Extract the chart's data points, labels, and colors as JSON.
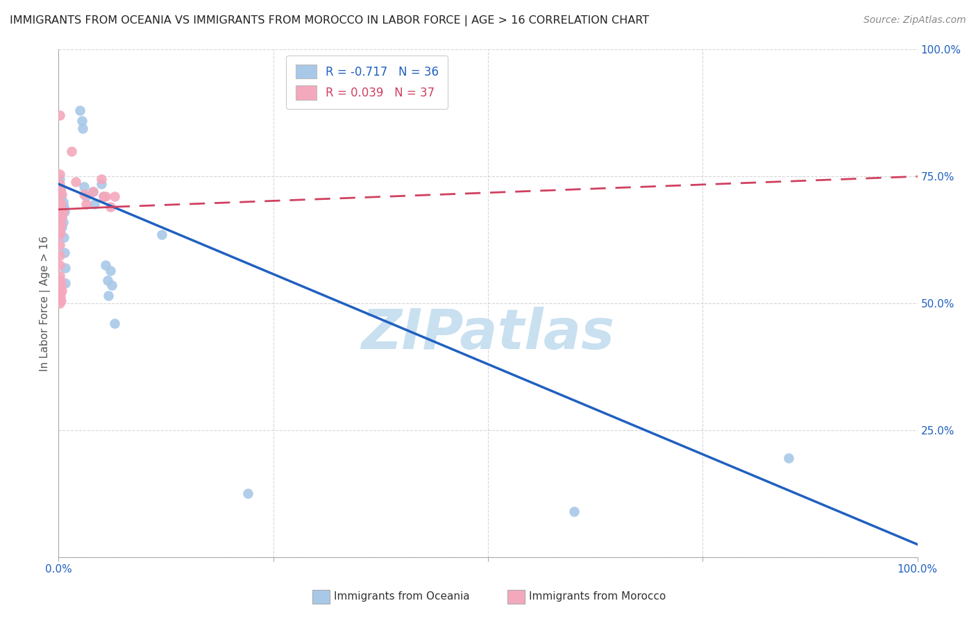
{
  "title": "IMMIGRANTS FROM OCEANIA VS IMMIGRANTS FROM MOROCCO IN LABOR FORCE | AGE > 16 CORRELATION CHART",
  "source": "Source: ZipAtlas.com",
  "ylabel": "In Labor Force | Age > 16",
  "r_oceania": -0.717,
  "n_oceania": 36,
  "r_morocco": 0.039,
  "n_morocco": 37,
  "color_oceania": "#a8c8e8",
  "color_morocco": "#f4a8bc",
  "line_color_oceania": "#2060c0",
  "line_color_morocco": "#d04060",
  "watermark_color": "#c8e0f0",
  "oceania_scatter": [
    [
      0.001,
      0.715
    ],
    [
      0.002,
      0.7
    ],
    [
      0.002,
      0.68
    ],
    [
      0.003,
      0.71
    ],
    [
      0.003,
      0.67
    ],
    [
      0.004,
      0.69
    ],
    [
      0.004,
      0.65
    ],
    [
      0.005,
      0.7
    ],
    [
      0.005,
      0.66
    ],
    [
      0.006,
      0.69
    ],
    [
      0.006,
      0.63
    ],
    [
      0.007,
      0.68
    ],
    [
      0.007,
      0.6
    ],
    [
      0.008,
      0.57
    ],
    [
      0.008,
      0.54
    ],
    [
      0.025,
      0.88
    ],
    [
      0.027,
      0.86
    ],
    [
      0.028,
      0.845
    ],
    [
      0.03,
      0.73
    ],
    [
      0.032,
      0.71
    ],
    [
      0.04,
      0.72
    ],
    [
      0.042,
      0.695
    ],
    [
      0.05,
      0.735
    ],
    [
      0.052,
      0.71
    ],
    [
      0.055,
      0.575
    ],
    [
      0.057,
      0.545
    ],
    [
      0.058,
      0.515
    ],
    [
      0.06,
      0.565
    ],
    [
      0.062,
      0.535
    ],
    [
      0.065,
      0.46
    ],
    [
      0.12,
      0.635
    ],
    [
      0.22,
      0.125
    ],
    [
      0.85,
      0.195
    ],
    [
      0.6,
      0.09
    ],
    [
      0.001,
      0.745
    ],
    [
      0.002,
      0.725
    ]
  ],
  "morocco_scatter": [
    [
      0.001,
      0.87
    ],
    [
      0.001,
      0.755
    ],
    [
      0.001,
      0.735
    ],
    [
      0.001,
      0.715
    ],
    [
      0.001,
      0.695
    ],
    [
      0.001,
      0.675
    ],
    [
      0.001,
      0.655
    ],
    [
      0.001,
      0.635
    ],
    [
      0.001,
      0.615
    ],
    [
      0.001,
      0.595
    ],
    [
      0.001,
      0.575
    ],
    [
      0.001,
      0.555
    ],
    [
      0.002,
      0.725
    ],
    [
      0.002,
      0.68
    ],
    [
      0.002,
      0.64
    ],
    [
      0.003,
      0.695
    ],
    [
      0.003,
      0.655
    ],
    [
      0.004,
      0.715
    ],
    [
      0.004,
      0.67
    ],
    [
      0.005,
      0.68
    ],
    [
      0.015,
      0.8
    ],
    [
      0.02,
      0.74
    ],
    [
      0.03,
      0.715
    ],
    [
      0.032,
      0.695
    ],
    [
      0.04,
      0.72
    ],
    [
      0.05,
      0.745
    ],
    [
      0.052,
      0.71
    ],
    [
      0.055,
      0.71
    ],
    [
      0.06,
      0.69
    ],
    [
      0.065,
      0.71
    ],
    [
      0.001,
      0.52
    ],
    [
      0.001,
      0.5
    ],
    [
      0.002,
      0.545
    ],
    [
      0.002,
      0.515
    ],
    [
      0.003,
      0.535
    ],
    [
      0.003,
      0.505
    ],
    [
      0.004,
      0.525
    ]
  ],
  "oceania_line": [
    [
      0.0,
      0.735
    ],
    [
      1.0,
      0.025
    ]
  ],
  "morocco_line_solid": [
    [
      0.0,
      0.685
    ],
    [
      0.065,
      0.69
    ]
  ],
  "morocco_line_dash": [
    [
      0.065,
      0.69
    ],
    [
      1.0,
      0.75
    ]
  ],
  "xlim": [
    0.0,
    1.0
  ],
  "ylim": [
    0.0,
    1.0
  ],
  "xticks": [
    0.0,
    0.25,
    0.5,
    0.75,
    1.0
  ],
  "yticks": [
    0.0,
    0.25,
    0.5,
    0.75,
    1.0
  ],
  "xticklabels": [
    "0.0%",
    "",
    "",
    "",
    "100.0%"
  ],
  "yticklabels_right": [
    "",
    "25.0%",
    "50.0%",
    "75.0%",
    "100.0%"
  ]
}
